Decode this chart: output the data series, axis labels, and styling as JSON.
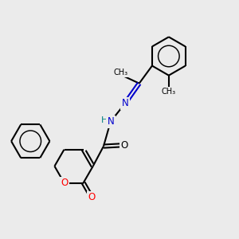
{
  "background_color": "#ebebeb",
  "bond_color": "#000000",
  "oxygen_color": "#ff0000",
  "nitrogen_color": "#0000cd",
  "hydrogen_color": "#008080",
  "line_width": 1.5,
  "figsize": [
    3.0,
    3.0
  ],
  "dpi": 100,
  "xlim": [
    0,
    10
  ],
  "ylim": [
    0,
    10
  ]
}
